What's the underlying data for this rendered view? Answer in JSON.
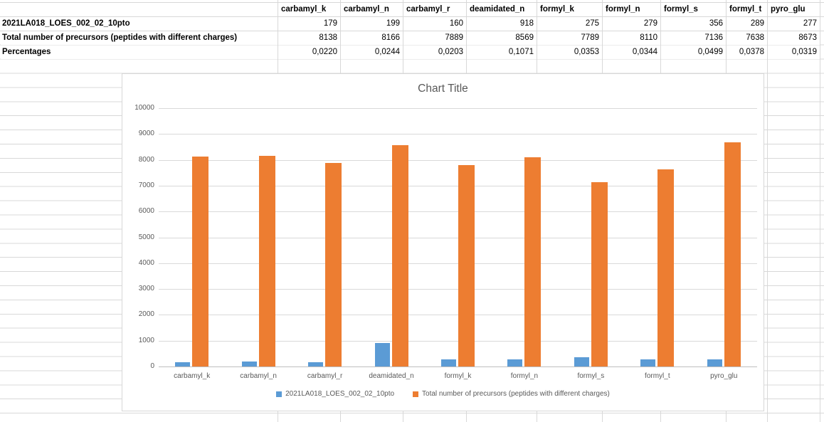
{
  "sheet": {
    "table": {
      "columns": [
        "carbamyl_k",
        "carbamyl_n",
        "carbamyl_r",
        "deamidated_n",
        "formyl_k",
        "formyl_n",
        "formyl_s",
        "formyl_t",
        "pyro_glu"
      ],
      "rows": [
        {
          "label": "2021LA018_LOES_002_02_10pto",
          "values": [
            "179",
            "199",
            "160",
            "918",
            "275",
            "279",
            "356",
            "289",
            "277"
          ]
        },
        {
          "label": "Total number of precursors (peptides with different charges)",
          "values": [
            "8138",
            "8166",
            "7889",
            "8569",
            "7789",
            "8110",
            "7136",
            "7638",
            "8673"
          ]
        },
        {
          "label": "Percentages",
          "values": [
            "0,0220",
            "0,0244",
            "0,0203",
            "0,1071",
            "0,0353",
            "0,0344",
            "0,0499",
            "0,0378",
            "0,0319"
          ]
        }
      ]
    }
  },
  "chart_data": {
    "type": "bar",
    "title": "Chart Title",
    "categories": [
      "carbamyl_k",
      "carbamyl_n",
      "carbamyl_r",
      "deamidated_n",
      "formyl_k",
      "formyl_n",
      "formyl_s",
      "formyl_t",
      "pyro_glu"
    ],
    "series": [
      {
        "name": "2021LA018_LOES_002_02_10pto",
        "color": "#5B9BD5",
        "values": [
          179,
          199,
          160,
          918,
          275,
          279,
          356,
          289,
          277
        ]
      },
      {
        "name": "Total number of precursors (peptides with different charges)",
        "color": "#ED7D31",
        "values": [
          8138,
          8166,
          7889,
          8569,
          7789,
          8110,
          7136,
          7638,
          8673
        ]
      }
    ],
    "xlabel": "",
    "ylabel": "",
    "ylim": [
      0,
      10000
    ],
    "yticks": [
      0,
      1000,
      2000,
      3000,
      4000,
      5000,
      6000,
      7000,
      8000,
      9000,
      10000
    ],
    "grid": true,
    "legend_position": "bottom"
  },
  "colors": {
    "series_blue": "#5B9BD5",
    "series_orange": "#ED7D31",
    "axis_text": "#595959",
    "chart_gridline": "#D9D9D9",
    "chart_axis_line": "#BFBFBF",
    "sheet_gridline": "#D8D8D8",
    "chart_border": "#D7D7D7",
    "cell_text": "#000000"
  }
}
